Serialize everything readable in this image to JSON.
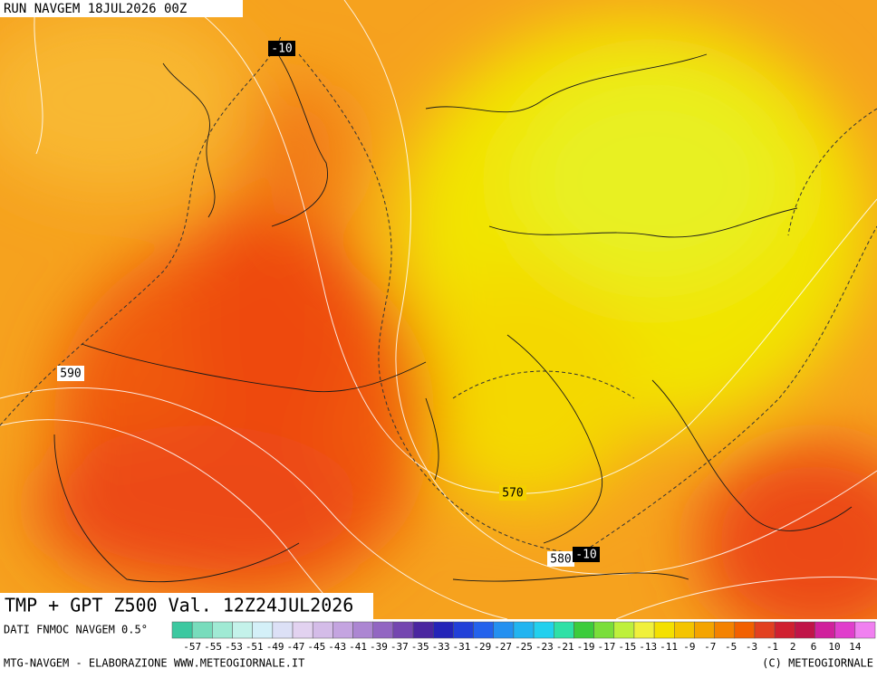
{
  "header": {
    "run": "RUN NAVGEM 18JUL2026 00Z"
  },
  "map": {
    "labels": [
      "-10",
      "590",
      "570",
      "580",
      "-10"
    ]
  },
  "title": "TMP + GPT Z500 Val. 12Z24JUL2026",
  "legend": {
    "source": "DATI FNMOC NAVGEM 0.5°",
    "colors": [
      "#3cc8a0",
      "#78dcbc",
      "#a0ead4",
      "#c4f2ea",
      "#d4f0f8",
      "#dce0f6",
      "#e2d2f0",
      "#d4bce8",
      "#c4a4e0",
      "#ac86d2",
      "#9266c2",
      "#7446b0",
      "#4a26a0",
      "#2424b8",
      "#2240d8",
      "#2462ec",
      "#2490f0",
      "#22b4f0",
      "#22d0ee",
      "#2ee0a6",
      "#3ccc3c",
      "#7ade3a",
      "#bef03c",
      "#f0f03c",
      "#f4e000",
      "#f4c400",
      "#f4a400",
      "#f48200",
      "#f26000",
      "#e24020",
      "#d02030",
      "#c01448",
      "#d0209c",
      "#e03ecc",
      "#f080f0"
    ],
    "labels": [
      "-57",
      "-55",
      "-53",
      "-51",
      "-49",
      "-47",
      "-45",
      "-43",
      "-41",
      "-39",
      "-37",
      "-35",
      "-33",
      "-31",
      "-29",
      "-27",
      "-25",
      "-23",
      "-21",
      "-19",
      "-17",
      "-15",
      "-13",
      "-11",
      "-9",
      "-7",
      "-5",
      "-3",
      "-1",
      "2",
      "6",
      "10",
      "14"
    ]
  },
  "footer": {
    "left": "MTG-NAVGEM - ELABORAZIONE WWW.METEOGIORNALE.IT",
    "right": "(C) METEOGIORNALE"
  }
}
